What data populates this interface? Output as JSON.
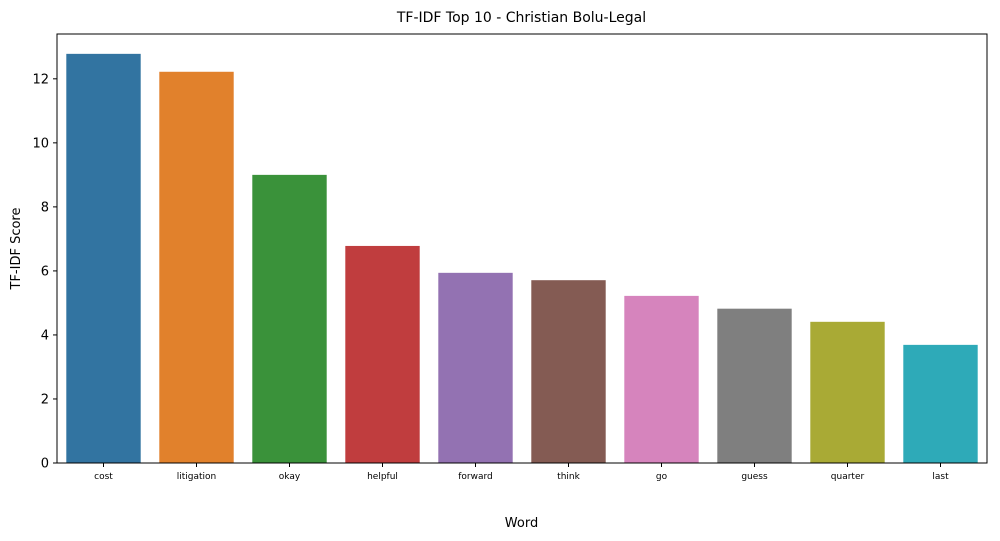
{
  "chart_data": {
    "type": "bar",
    "title": "TF-IDF Top 10 - Christian Bolu-Legal",
    "xlabel": "Word",
    "ylabel": "TF-IDF Score",
    "categories": [
      "cost",
      "litigation",
      "okay",
      "helpful",
      "forward",
      "think",
      "go",
      "guess",
      "quarter",
      "last"
    ],
    "values": [
      12.78,
      12.22,
      9.0,
      6.78,
      5.94,
      5.71,
      5.22,
      4.82,
      4.41,
      3.69
    ],
    "colors": [
      "#3274a1",
      "#e1812c",
      "#3a923a",
      "#c03d3e",
      "#9372b2",
      "#845b53",
      "#d684bd",
      "#7f7f7f",
      "#a9aa35",
      "#2eaab8"
    ],
    "ylim": [
      0,
      13.4
    ],
    "yticks": [
      0,
      2,
      4,
      6,
      8,
      10,
      12
    ],
    "grid": false,
    "legend": "none"
  }
}
